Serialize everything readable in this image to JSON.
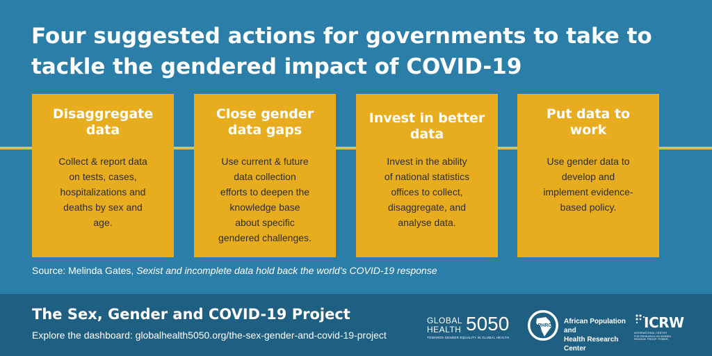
{
  "headline": "Four suggested actions for governments to take to tackle the gendered impact of COVID-19",
  "colors": {
    "background": "#2b7ea8",
    "card": "#e7ad1f",
    "line": "#c6c46c",
    "footer": "#1f5f82"
  },
  "actions": [
    {
      "title": "Disaggregate\ndata",
      "body": "Collect & report data\non tests, cases,\nhospitalizations and\ndeaths by sex and\nage."
    },
    {
      "title": "Close  gender\ndata gaps",
      "body": "Use current & future\ndata collection\nefforts to deepen the\nknowledge base\nabout specific\ngendered challenges."
    },
    {
      "title": "Invest in better\ndata",
      "body": "Invest in the ability\nof national statistics\noffices to collect,\ndisaggregate, and\nanalyse data."
    },
    {
      "title": "Put data to\nwork",
      "body": "Use gender data to\ndevelop and\nimplement evidence-\nbased policy."
    }
  ],
  "source": {
    "prefix": "Source: Melinda Gates, ",
    "title": "Sexist and incomplete data hold back the world’s COVID-19 response"
  },
  "footer": {
    "project_title": "The Sex, Gender and COVID-19 Project",
    "explore": "Explore the dashboard: globalhealth5050.org/the-sex-gender-and-covid-19-project"
  },
  "logos": {
    "globalhealth": {
      "line1": "GLOBAL",
      "line2": "HEALTH",
      "number": "5050",
      "tagline": "TOWARDS GENDER EQUALITY IN GLOBAL HEALTH"
    },
    "aphrc": {
      "abbr": "APHRC",
      "name": "African Population and\nHealth Research Center"
    },
    "icrw": {
      "word": "ICRW",
      "subtitle": "INTERNATIONAL CENTER\nFOR RESEARCH ON WOMEN\nPASSION. PROOF. POWER."
    }
  }
}
